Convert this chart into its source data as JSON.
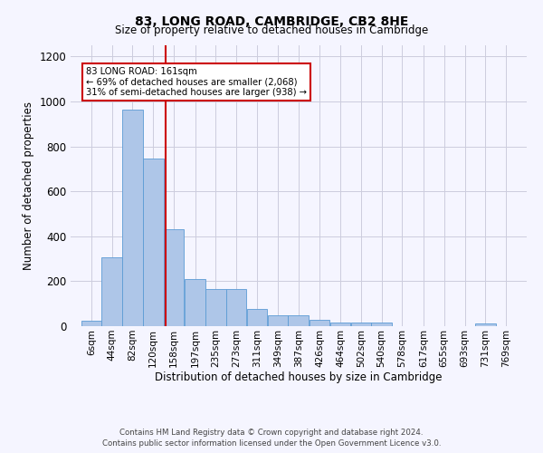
{
  "title": "83, LONG ROAD, CAMBRIDGE, CB2 8HE",
  "subtitle": "Size of property relative to detached houses in Cambridge",
  "xlabel": "Distribution of detached houses by size in Cambridge",
  "ylabel": "Number of detached properties",
  "footer_line1": "Contains HM Land Registry data © Crown copyright and database right 2024.",
  "footer_line2": "Contains public sector information licensed under the Open Government Licence v3.0.",
  "annotation_line1": "83 LONG ROAD: 161sqm",
  "annotation_line2": "← 69% of detached houses are smaller (2,068)",
  "annotation_line3": "31% of semi-detached houses are larger (938) →",
  "property_size": 161,
  "bar_color": "#aec6e8",
  "bar_edge_color": "#5b9bd5",
  "vline_color": "#cc0000",
  "vline_x": 161,
  "categories": [
    "6sqm",
    "44sqm",
    "82sqm",
    "120sqm",
    "158sqm",
    "197sqm",
    "235sqm",
    "273sqm",
    "311sqm",
    "349sqm",
    "387sqm",
    "426sqm",
    "464sqm",
    "502sqm",
    "540sqm",
    "578sqm",
    "617sqm",
    "655sqm",
    "693sqm",
    "731sqm",
    "769sqm"
  ],
  "bin_edges": [
    6,
    44,
    82,
    120,
    158,
    197,
    235,
    273,
    311,
    349,
    387,
    426,
    464,
    502,
    540,
    578,
    617,
    655,
    693,
    731,
    769
  ],
  "bin_width": 38,
  "values": [
    25,
    305,
    965,
    745,
    430,
    210,
    165,
    165,
    75,
    48,
    48,
    30,
    18,
    15,
    15,
    0,
    0,
    0,
    0,
    12,
    0
  ],
  "ylim": [
    0,
    1250
  ],
  "yticks": [
    0,
    200,
    400,
    600,
    800,
    1000,
    1200
  ],
  "background_color": "#f5f5ff",
  "grid_color": "#ccccdd"
}
